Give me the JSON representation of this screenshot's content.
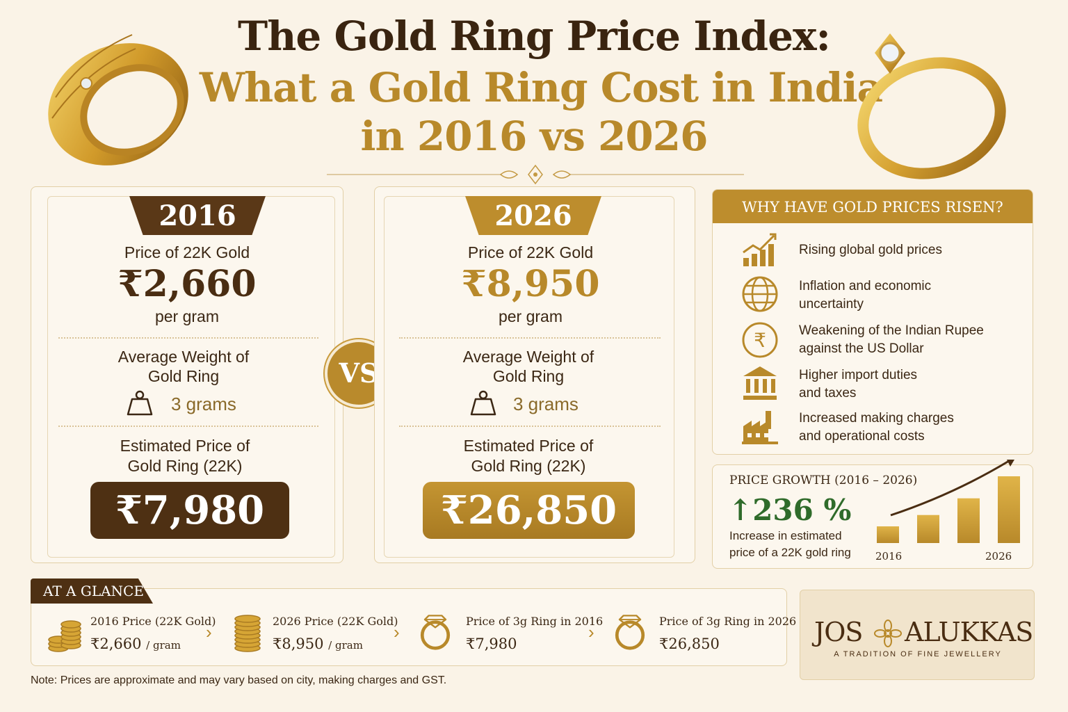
{
  "header": {
    "title_line1": "The Gold Ring Price Index:",
    "title_line2": "What a Gold Ring Cost in India",
    "title_line3": "in 2016 vs 2026"
  },
  "panels": [
    {
      "year": "2016",
      "price_label": "Price of 22K Gold",
      "price_value": "₹2,660",
      "price_unit": "per gram",
      "weight_label_1": "Average Weight of",
      "weight_label_2": "Gold Ring",
      "weight_value": "3 grams",
      "estimate_label_1": "Estimated Price of",
      "estimate_label_2": "Gold Ring (22K)",
      "estimate_value": "₹7,980"
    },
    {
      "year": "2026",
      "price_label": "Price of 22K Gold",
      "price_value": "₹8,950",
      "price_unit": "per gram",
      "weight_label_1": "Average Weight of",
      "weight_label_2": "Gold Ring",
      "weight_value": "3 grams",
      "estimate_label_1": "Estimated Price of",
      "estimate_label_2": "Gold Ring (22K)",
      "estimate_value": "₹26,850"
    }
  ],
  "vs_label": "VS",
  "why": {
    "heading": "WHY HAVE GOLD PRICES RISEN?",
    "items": [
      {
        "icon": "rising-chart-icon",
        "line1": "Rising global gold prices",
        "line2": ""
      },
      {
        "icon": "globe-icon",
        "line1": "Inflation and economic",
        "line2": "uncertainty"
      },
      {
        "icon": "rupee-icon",
        "line1": "Weakening of the Indian Rupee",
        "line2": "against the US Dollar"
      },
      {
        "icon": "bank-icon",
        "line1": "Higher import duties",
        "line2": "and taxes"
      },
      {
        "icon": "factory-icon",
        "line1": "Increased making charges",
        "line2": "and operational costs"
      }
    ]
  },
  "growth": {
    "title": "PRICE GROWTH (2016 – 2026)",
    "arrow": "↑",
    "percent": "236 %",
    "desc_line1": "Increase in estimated",
    "desc_line2": "price of a 22K gold ring",
    "start_label": "2016",
    "end_label": "2026",
    "bar_levels": [
      0.25,
      0.42,
      0.67,
      1.0
    ]
  },
  "glance": {
    "tab": "AT A GLANCE",
    "items": [
      {
        "icon": "coin-stack-icon",
        "label": "2016 Price (22K Gold)",
        "value": "₹2,660",
        "unit": "/ gram"
      },
      {
        "icon": "coin-stack-icon",
        "label": "2026 Price (22K Gold)",
        "value": "₹8,950",
        "unit": "/ gram"
      },
      {
        "icon": "diamond-ring-icon",
        "label": "Price of 3g Ring in 2016",
        "value": "₹7,980",
        "unit": ""
      },
      {
        "icon": "diamond-ring-icon",
        "label": "Price of 3g Ring in 2026",
        "value": "₹26,850",
        "unit": ""
      }
    ],
    "separator": "›"
  },
  "logo": {
    "left": "JOS",
    "right": "ALUKKAS",
    "tagline": "A TRADITION OF FINE JEWELLERY"
  },
  "note": "Note: Prices are approximate and may vary based on city, making charges and GST.",
  "colors": {
    "gold": "#b8892a",
    "brown": "#4e3013",
    "green": "#2f6b2a",
    "background": "#faf3e7"
  }
}
